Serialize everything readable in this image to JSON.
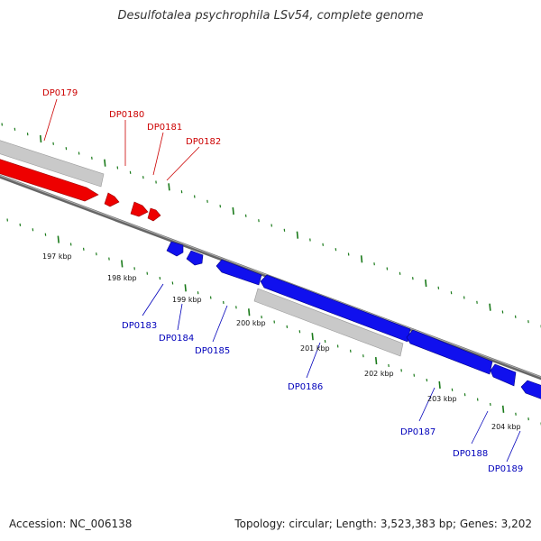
{
  "title": "Desulfotalea psychrophila LSv54, complete genome",
  "footer": {
    "accession": "Accession: NC_006138",
    "summary": "Topology: circular; Length: 3,523,383 bp; Genes: 3,202"
  },
  "colors": {
    "forward_gene": "#ff0000",
    "reverse_gene": "#0000ff",
    "misc_feature": "#c8c8c8",
    "tick": "#1a7a1a",
    "backbone": "#777777",
    "forward_label": "#cc0000",
    "reverse_label": "#0000bb"
  },
  "kbp_ticks": [
    "197 kbp",
    "198 kbp",
    "199 kbp",
    "200 kbp",
    "201 kbp",
    "202 kbp",
    "203 kbp",
    "204 kbp"
  ],
  "genes": [
    {
      "label": "DP0179",
      "strand": "forward"
    },
    {
      "label": "DP0180",
      "strand": "forward"
    },
    {
      "label": "DP0181",
      "strand": "forward"
    },
    {
      "label": "DP0182",
      "strand": "forward"
    },
    {
      "label": "DP0183",
      "strand": "reverse"
    },
    {
      "label": "DP0184",
      "strand": "reverse"
    },
    {
      "label": "DP0185",
      "strand": "reverse"
    },
    {
      "label": "DP0186",
      "strand": "reverse"
    },
    {
      "label": "DP0187",
      "strand": "reverse"
    },
    {
      "label": "DP0188",
      "strand": "reverse"
    },
    {
      "label": "DP0189",
      "strand": "reverse"
    }
  ]
}
